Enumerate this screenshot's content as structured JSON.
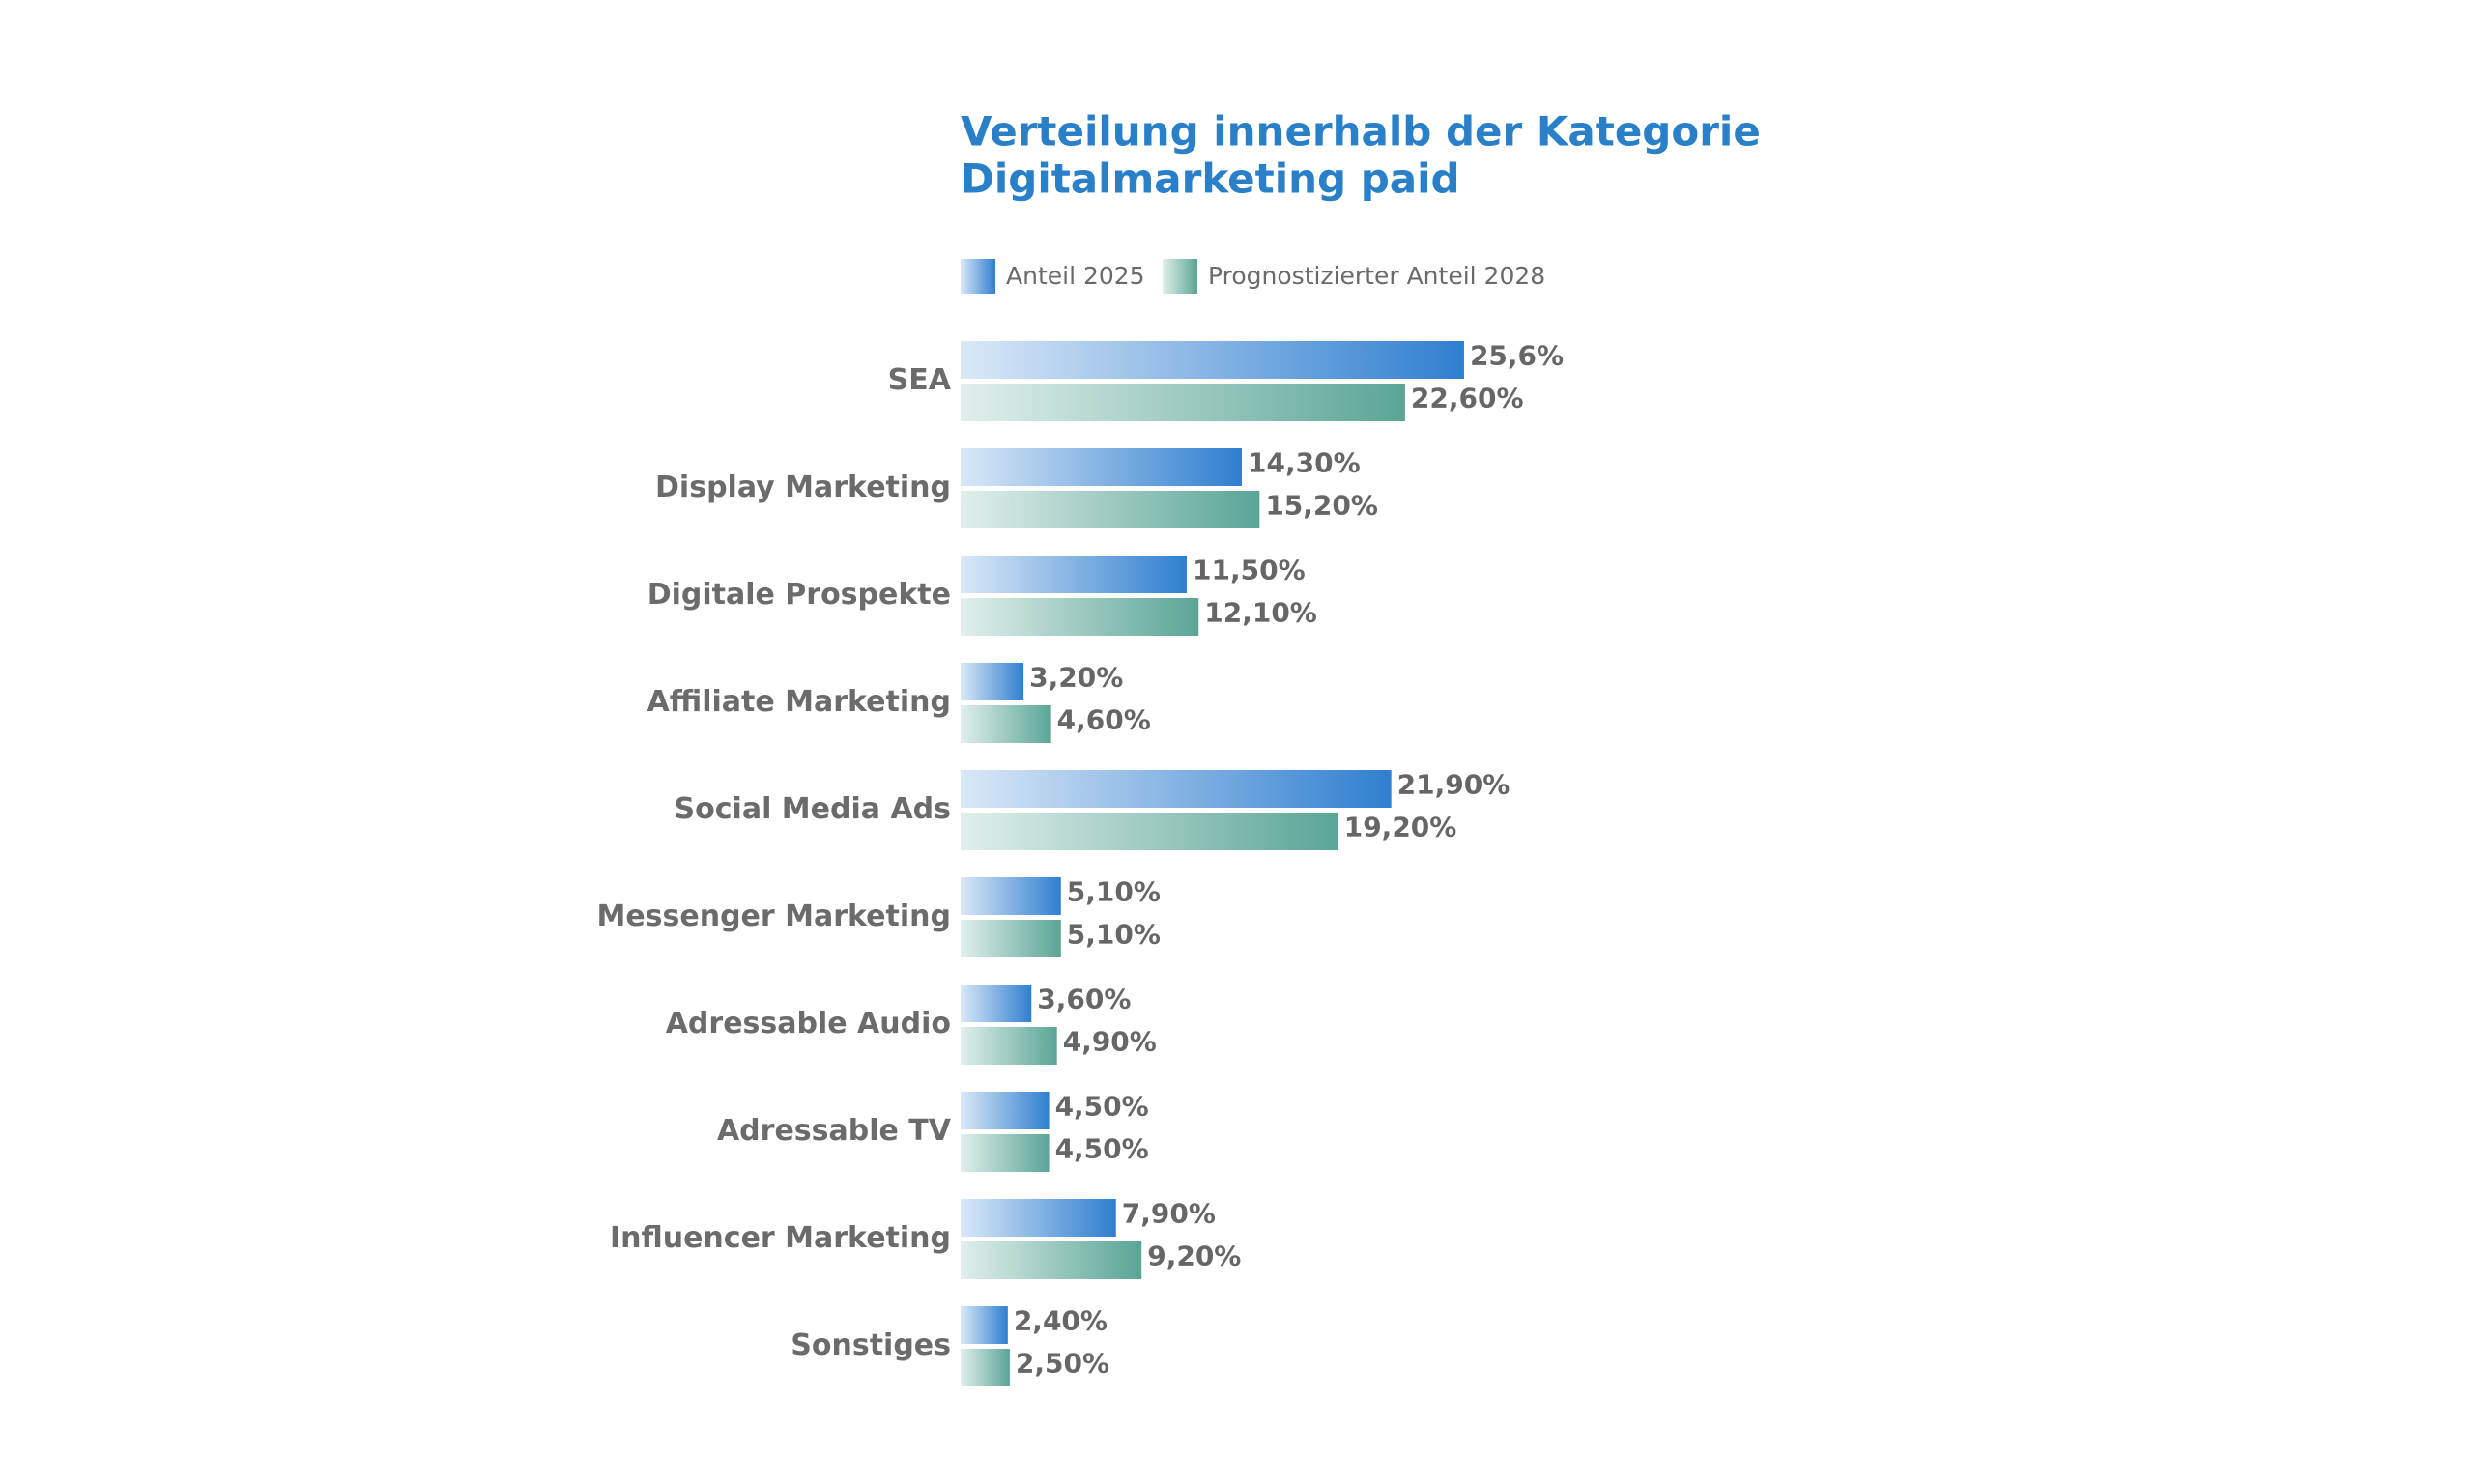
{
  "chart_data": {
    "type": "bar",
    "orientation": "horizontal",
    "title": [
      "Verteilung innerhalb der Kategorie",
      "Digitalmarketing paid"
    ],
    "categories": [
      "SEA",
      "Display Marketing",
      "Digitale Prospekte",
      "Affiliate Marketing",
      "Social Media Ads",
      "Messenger Marketing",
      "Adressable Audio",
      "Adressable TV",
      "Influencer Marketing",
      "Sonstiges"
    ],
    "series": [
      {
        "name": "Anteil 2025",
        "color": "#2f7fd0",
        "values": [
          25.6,
          14.3,
          11.5,
          3.2,
          21.9,
          5.1,
          3.6,
          4.5,
          7.9,
          2.4
        ],
        "value_labels": [
          "25,6%",
          "14,30%",
          "11,50%",
          "3,20%",
          "21,90%",
          "5,10%",
          "3,60%",
          "4,50%",
          "7,90%",
          "2,40%"
        ]
      },
      {
        "name": "Prognostizierter Anteil 2028",
        "color": "#5aa596",
        "values": [
          22.6,
          15.2,
          12.1,
          4.6,
          19.2,
          5.1,
          4.9,
          4.5,
          9.2,
          2.5
        ],
        "value_labels": [
          "22,60%",
          "15,20%",
          "12,10%",
          "4,60%",
          "19,20%",
          "5,10%",
          "4,90%",
          "4,50%",
          "9,20%",
          "2,50%"
        ]
      }
    ],
    "legend": "top-left"
  }
}
